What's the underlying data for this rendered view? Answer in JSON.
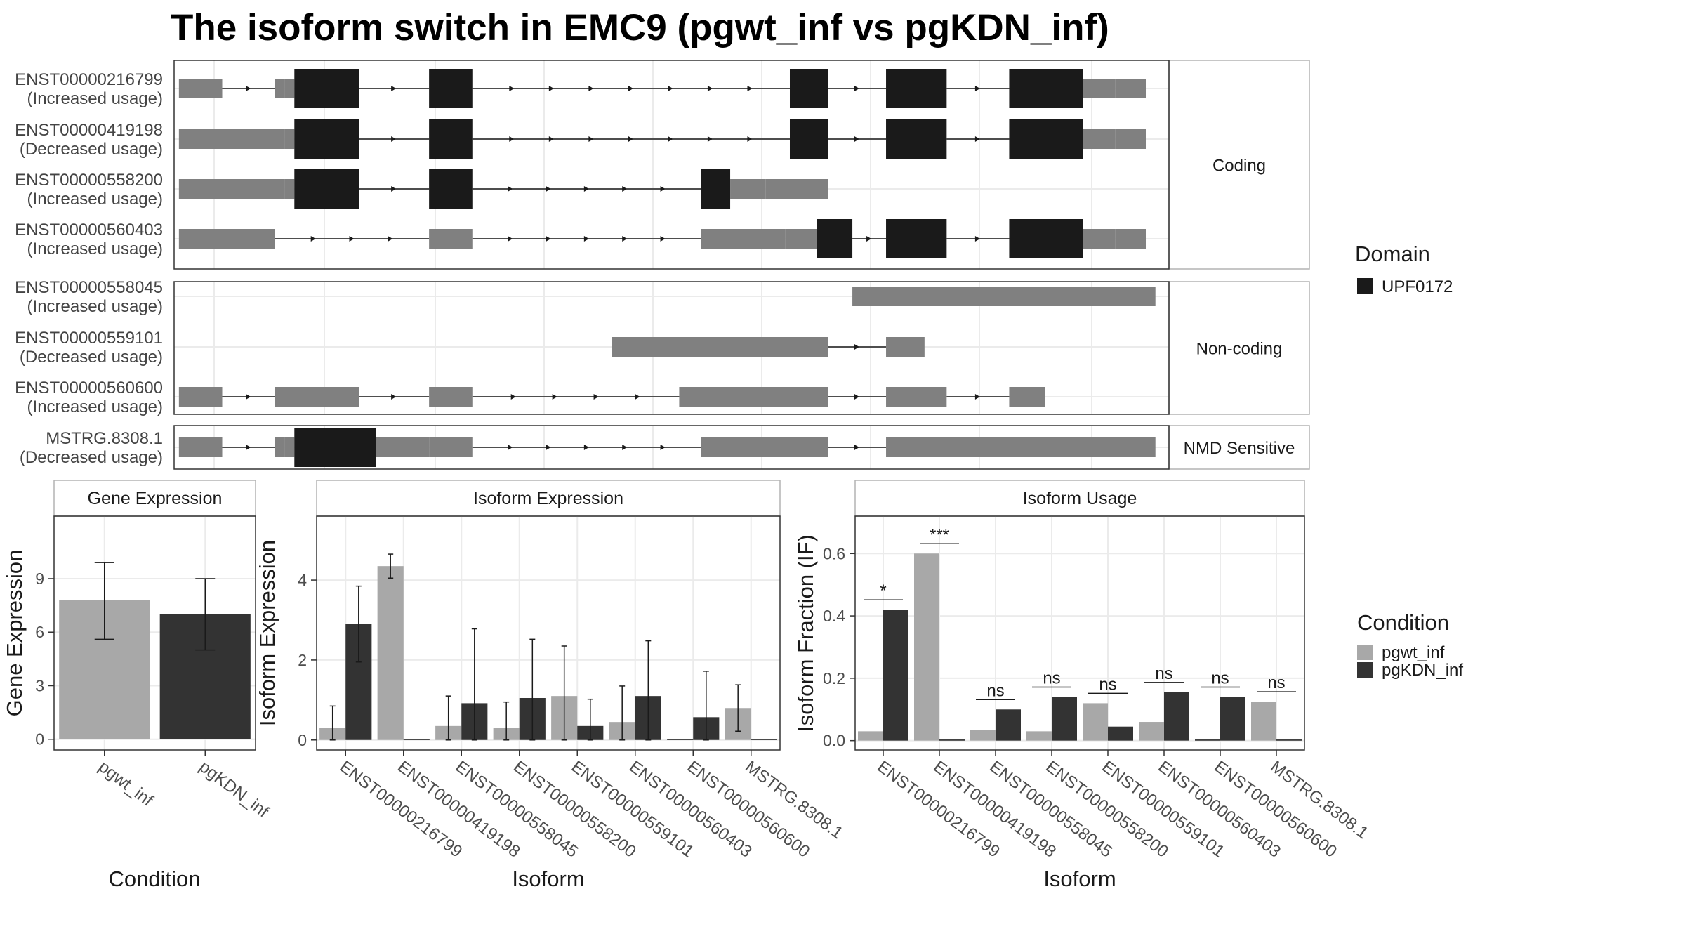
{
  "title": "The isoform switch in EMC9 (pgwt_inf vs pgKDN_inf)",
  "structure": {
    "isoforms": [
      {
        "id": "ENST00000216799",
        "usage": "(Increased usage)",
        "group": "Coding",
        "exons": [
          [
            70,
            115
          ],
          [
            170,
            180,
            "g"
          ],
          [
            180,
            190,
            "g"
          ],
          [
            190,
            257,
            "k"
          ],
          [
            330,
            375,
            "k"
          ],
          [
            705,
            745,
            "k"
          ],
          [
            805,
            868,
            "k"
          ],
          [
            933,
            1010,
            "k"
          ],
          [
            1010,
            1043,
            "g"
          ],
          [
            1043,
            1075,
            "g"
          ]
        ]
      },
      {
        "id": "ENST00000419198",
        "usage": "(Decreased usage)",
        "group": "Coding",
        "exons": [
          [
            70,
            180,
            "g"
          ],
          [
            180,
            190,
            "g"
          ],
          [
            190,
            257,
            "k"
          ],
          [
            330,
            375,
            "k"
          ],
          [
            705,
            745,
            "k"
          ],
          [
            805,
            868,
            "k"
          ],
          [
            933,
            1010,
            "k"
          ],
          [
            1010,
            1043,
            "g"
          ],
          [
            1043,
            1075,
            "g"
          ]
        ]
      },
      {
        "id": "ENST00000558200",
        "usage": "(Increased usage)",
        "group": "Coding",
        "exons": [
          [
            70,
            180,
            "g"
          ],
          [
            180,
            190,
            "g"
          ],
          [
            190,
            257,
            "k"
          ],
          [
            330,
            375,
            "k"
          ],
          [
            613,
            643,
            "k"
          ],
          [
            643,
            680,
            "g"
          ],
          [
            680,
            745,
            "g"
          ]
        ]
      },
      {
        "id": "ENST00000560403",
        "usage": "(Increased usage)",
        "group": "Coding",
        "exons": [
          [
            70,
            170,
            "g"
          ],
          [
            330,
            375,
            "g"
          ],
          [
            613,
            700,
            "g"
          ],
          [
            700,
            733,
            "g"
          ],
          [
            733,
            745,
            "k"
          ],
          [
            745,
            770,
            "k"
          ],
          [
            805,
            868,
            "k"
          ],
          [
            933,
            1010,
            "k"
          ],
          [
            1010,
            1043,
            "g"
          ],
          [
            1043,
            1075,
            "g"
          ]
        ]
      },
      {
        "id": "ENST00000558045",
        "usage": "(Increased usage)",
        "group": "Non-coding",
        "exons": [
          [
            770,
            1085,
            "g"
          ]
        ]
      },
      {
        "id": "ENST00000559101",
        "usage": "(Decreased usage)",
        "group": "Non-coding",
        "exons": [
          [
            520,
            745,
            "g"
          ],
          [
            805,
            845,
            "g"
          ]
        ]
      },
      {
        "id": "ENST00000560600",
        "usage": "(Increased usage)",
        "group": "Non-coding",
        "exons": [
          [
            70,
            115,
            "g"
          ],
          [
            170,
            257,
            "g"
          ],
          [
            330,
            375,
            "g"
          ],
          [
            590,
            745,
            "g"
          ],
          [
            805,
            868,
            "g"
          ],
          [
            933,
            970,
            "g"
          ]
        ]
      },
      {
        "id": "MSTRG.8308.1",
        "usage": "(Decreased usage)",
        "group": "NMD Sensitive",
        "exons": [
          [
            70,
            115,
            "g"
          ],
          [
            170,
            180,
            "g"
          ],
          [
            180,
            190,
            "g"
          ],
          [
            190,
            275,
            "k"
          ],
          [
            275,
            330,
            "g"
          ],
          [
            330,
            375,
            "g"
          ],
          [
            613,
            745,
            "g"
          ],
          [
            805,
            1085,
            "g"
          ]
        ]
      }
    ],
    "groups": [
      "Coding",
      "Non-coding",
      "NMD Sensitive"
    ]
  },
  "legend_domain": {
    "title": "Domain",
    "items": [
      {
        "label": "UPF0172",
        "color": "#1a1a1a"
      }
    ]
  },
  "legend_condition": {
    "title": "Condition",
    "items": [
      {
        "label": "pgwt_inf",
        "color": "#a8a8a8"
      },
      {
        "label": "pgKDN_inf",
        "color": "#333333"
      }
    ]
  },
  "chart_data": [
    {
      "type": "bar",
      "panel": "Gene Expression",
      "categories": [
        "pgwt_inf",
        "pgKDN_inf"
      ],
      "values": [
        7.8,
        7.0
      ],
      "error_low": [
        5.6,
        5.0
      ],
      "error_high": [
        9.9,
        9.0
      ],
      "colors": [
        "#a8a8a8",
        "#333333"
      ],
      "xlabel": "Condition",
      "ylabel": "Gene Expression",
      "ylim": [
        -0.6,
        12.5
      ],
      "yticks": [
        0,
        3,
        6,
        9
      ]
    },
    {
      "type": "bar",
      "panel": "Isoform Expression",
      "categories": [
        "ENST00000216799",
        "ENST00000419198",
        "ENST00000558045",
        "ENST00000558200",
        "ENST00000559101",
        "ENST00000560403",
        "ENST00000560600",
        "MSTRG.8308.1"
      ],
      "series": [
        {
          "name": "pgwt_inf",
          "values": [
            0.3,
            4.35,
            0.35,
            0.3,
            1.1,
            0.45,
            0.0,
            0.8
          ],
          "error_low": [
            0.0,
            4.05,
            0.0,
            0.0,
            0.0,
            0.0,
            0.0,
            0.22
          ],
          "error_high": [
            0.85,
            4.65,
            1.1,
            0.95,
            2.35,
            1.35,
            0.0,
            1.38
          ]
        },
        {
          "name": "pgKDN_inf",
          "values": [
            2.9,
            0.0,
            0.92,
            1.05,
            0.35,
            1.1,
            0.57,
            0.0
          ],
          "error_low": [
            1.95,
            0.0,
            0.0,
            0.0,
            0.0,
            0.0,
            0.0,
            0.0
          ],
          "error_high": [
            3.85,
            0.0,
            2.78,
            2.52,
            1.02,
            2.48,
            1.72,
            0.0
          ]
        }
      ],
      "xlabel": "Isoform",
      "ylabel": "Isoform Expression",
      "ylim": [
        -0.25,
        5.6
      ],
      "yticks": [
        0,
        2,
        4
      ]
    },
    {
      "type": "bar",
      "panel": "Isoform Usage",
      "categories": [
        "ENST00000216799",
        "ENST00000419198",
        "ENST00000558045",
        "ENST00000558200",
        "ENST00000559101",
        "ENST00000560403",
        "ENST00000560600",
        "MSTRG.8308.1"
      ],
      "series": [
        {
          "name": "pgwt_inf",
          "values": [
            0.03,
            0.6,
            0.035,
            0.03,
            0.12,
            0.06,
            0.0,
            0.125
          ]
        },
        {
          "name": "pgKDN_inf",
          "values": [
            0.42,
            0.0,
            0.1,
            0.14,
            0.045,
            0.155,
            0.14,
            0.0
          ]
        }
      ],
      "significance": [
        "*",
        "***",
        "ns",
        "ns",
        "ns",
        "ns",
        "ns",
        "ns"
      ],
      "xlabel": "Isoform",
      "ylabel": "Isoform Fraction (IF)",
      "ylim": [
        -0.03,
        0.72
      ],
      "yticks": [
        0.0,
        0.2,
        0.4,
        0.6
      ]
    }
  ]
}
